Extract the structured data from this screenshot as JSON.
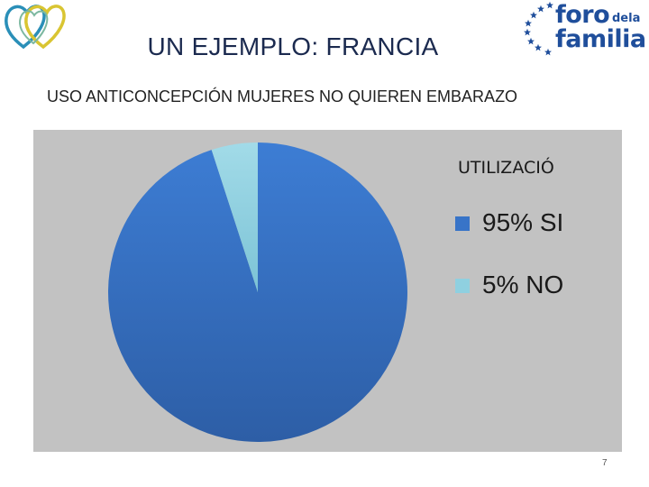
{
  "slide": {
    "title": "UN EJEMPLO: FRANCIA",
    "subtitle": "USO ANTICONCEPCIÓN MUJERES NO QUIEREN EMBARAZO",
    "page_number": "7"
  },
  "logos": {
    "left_icon": "hearts-logo-icon",
    "right": {
      "foro": "foro",
      "dela": "dela",
      "familia": "familia"
    }
  },
  "chart_data": {
    "type": "pie",
    "title": "",
    "legend_title": "UTILIZACIÓ",
    "legend_position": "right",
    "categories": [
      "95% SI",
      "5% NO"
    ],
    "values": [
      95,
      5
    ],
    "colors": [
      "#3874c8",
      "#8fd0e0"
    ],
    "background": "#c2c2c2"
  }
}
